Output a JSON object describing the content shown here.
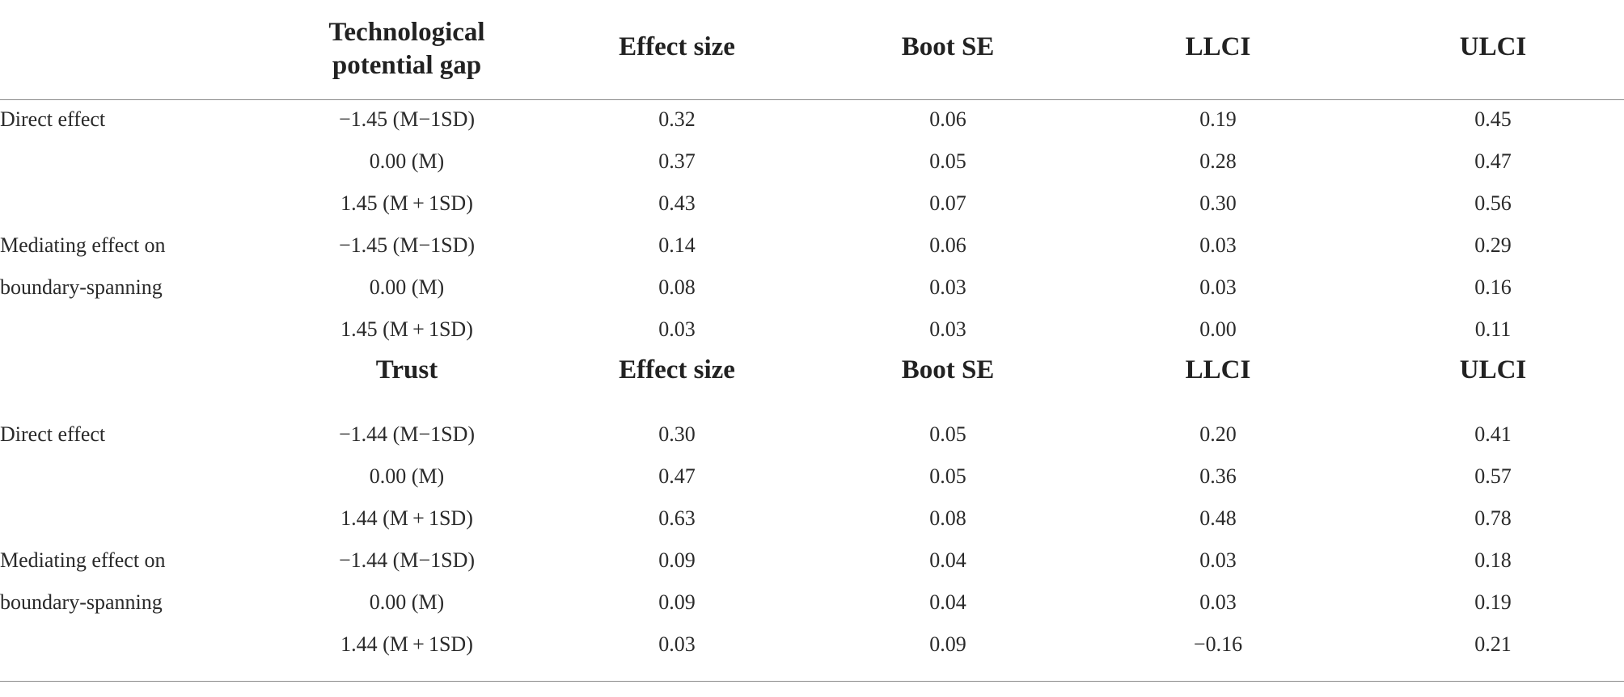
{
  "header1": {
    "col1_line1": "Technological",
    "col1_line2": "potential gap",
    "col2": "Effect size",
    "col3": "Boot SE",
    "col4": "LLCI",
    "col5": "ULCI"
  },
  "header2": {
    "col1": "Trust",
    "col2": "Effect size",
    "col3": "Boot SE",
    "col4": "LLCI",
    "col5": "ULCI"
  },
  "section1_rows": [
    {
      "label": "Direct effect",
      "moderator": "−1.45 (M−1SD)",
      "effect": "0.32",
      "se": "0.06",
      "llci": "0.19",
      "ulci": "0.45"
    },
    {
      "label": "",
      "moderator": "0.00 (M)",
      "effect": "0.37",
      "se": "0.05",
      "llci": "0.28",
      "ulci": "0.47"
    },
    {
      "label": "",
      "moderator": "1.45 (M + 1SD)",
      "effect": "0.43",
      "se": "0.07",
      "llci": "0.30",
      "ulci": "0.56"
    },
    {
      "label": "Mediating effect on",
      "moderator": "−1.45 (M−1SD)",
      "effect": "0.14",
      "se": "0.06",
      "llci": "0.03",
      "ulci": "0.29"
    },
    {
      "label": "boundary-spanning",
      "moderator": "0.00 (M)",
      "effect": "0.08",
      "se": "0.03",
      "llci": "0.03",
      "ulci": "0.16"
    },
    {
      "label": "",
      "moderator": "1.45 (M + 1SD)",
      "effect": "0.03",
      "se": "0.03",
      "llci": "0.00",
      "ulci": "0.11"
    }
  ],
  "section2_rows": [
    {
      "label": "Direct effect",
      "moderator": "−1.44 (M−1SD)",
      "effect": "0.30",
      "se": "0.05",
      "llci": "0.20",
      "ulci": "0.41"
    },
    {
      "label": "",
      "moderator": "0.00 (M)",
      "effect": "0.47",
      "se": "0.05",
      "llci": "0.36",
      "ulci": "0.57"
    },
    {
      "label": "",
      "moderator": "1.44 (M + 1SD)",
      "effect": "0.63",
      "se": "0.08",
      "llci": "0.48",
      "ulci": "0.78"
    },
    {
      "label": "Mediating effect on",
      "moderator": "−1.44 (M−1SD)",
      "effect": "0.09",
      "se": "0.04",
      "llci": "0.03",
      "ulci": "0.18"
    },
    {
      "label": "boundary-spanning",
      "moderator": "0.00 (M)",
      "effect": "0.09",
      "se": "0.04",
      "llci": "0.03",
      "ulci": "0.19"
    },
    {
      "label": "",
      "moderator": "1.44 (M + 1SD)",
      "effect": "0.03",
      "se": "0.09",
      "llci": "−0.16",
      "ulci": "0.21"
    }
  ]
}
